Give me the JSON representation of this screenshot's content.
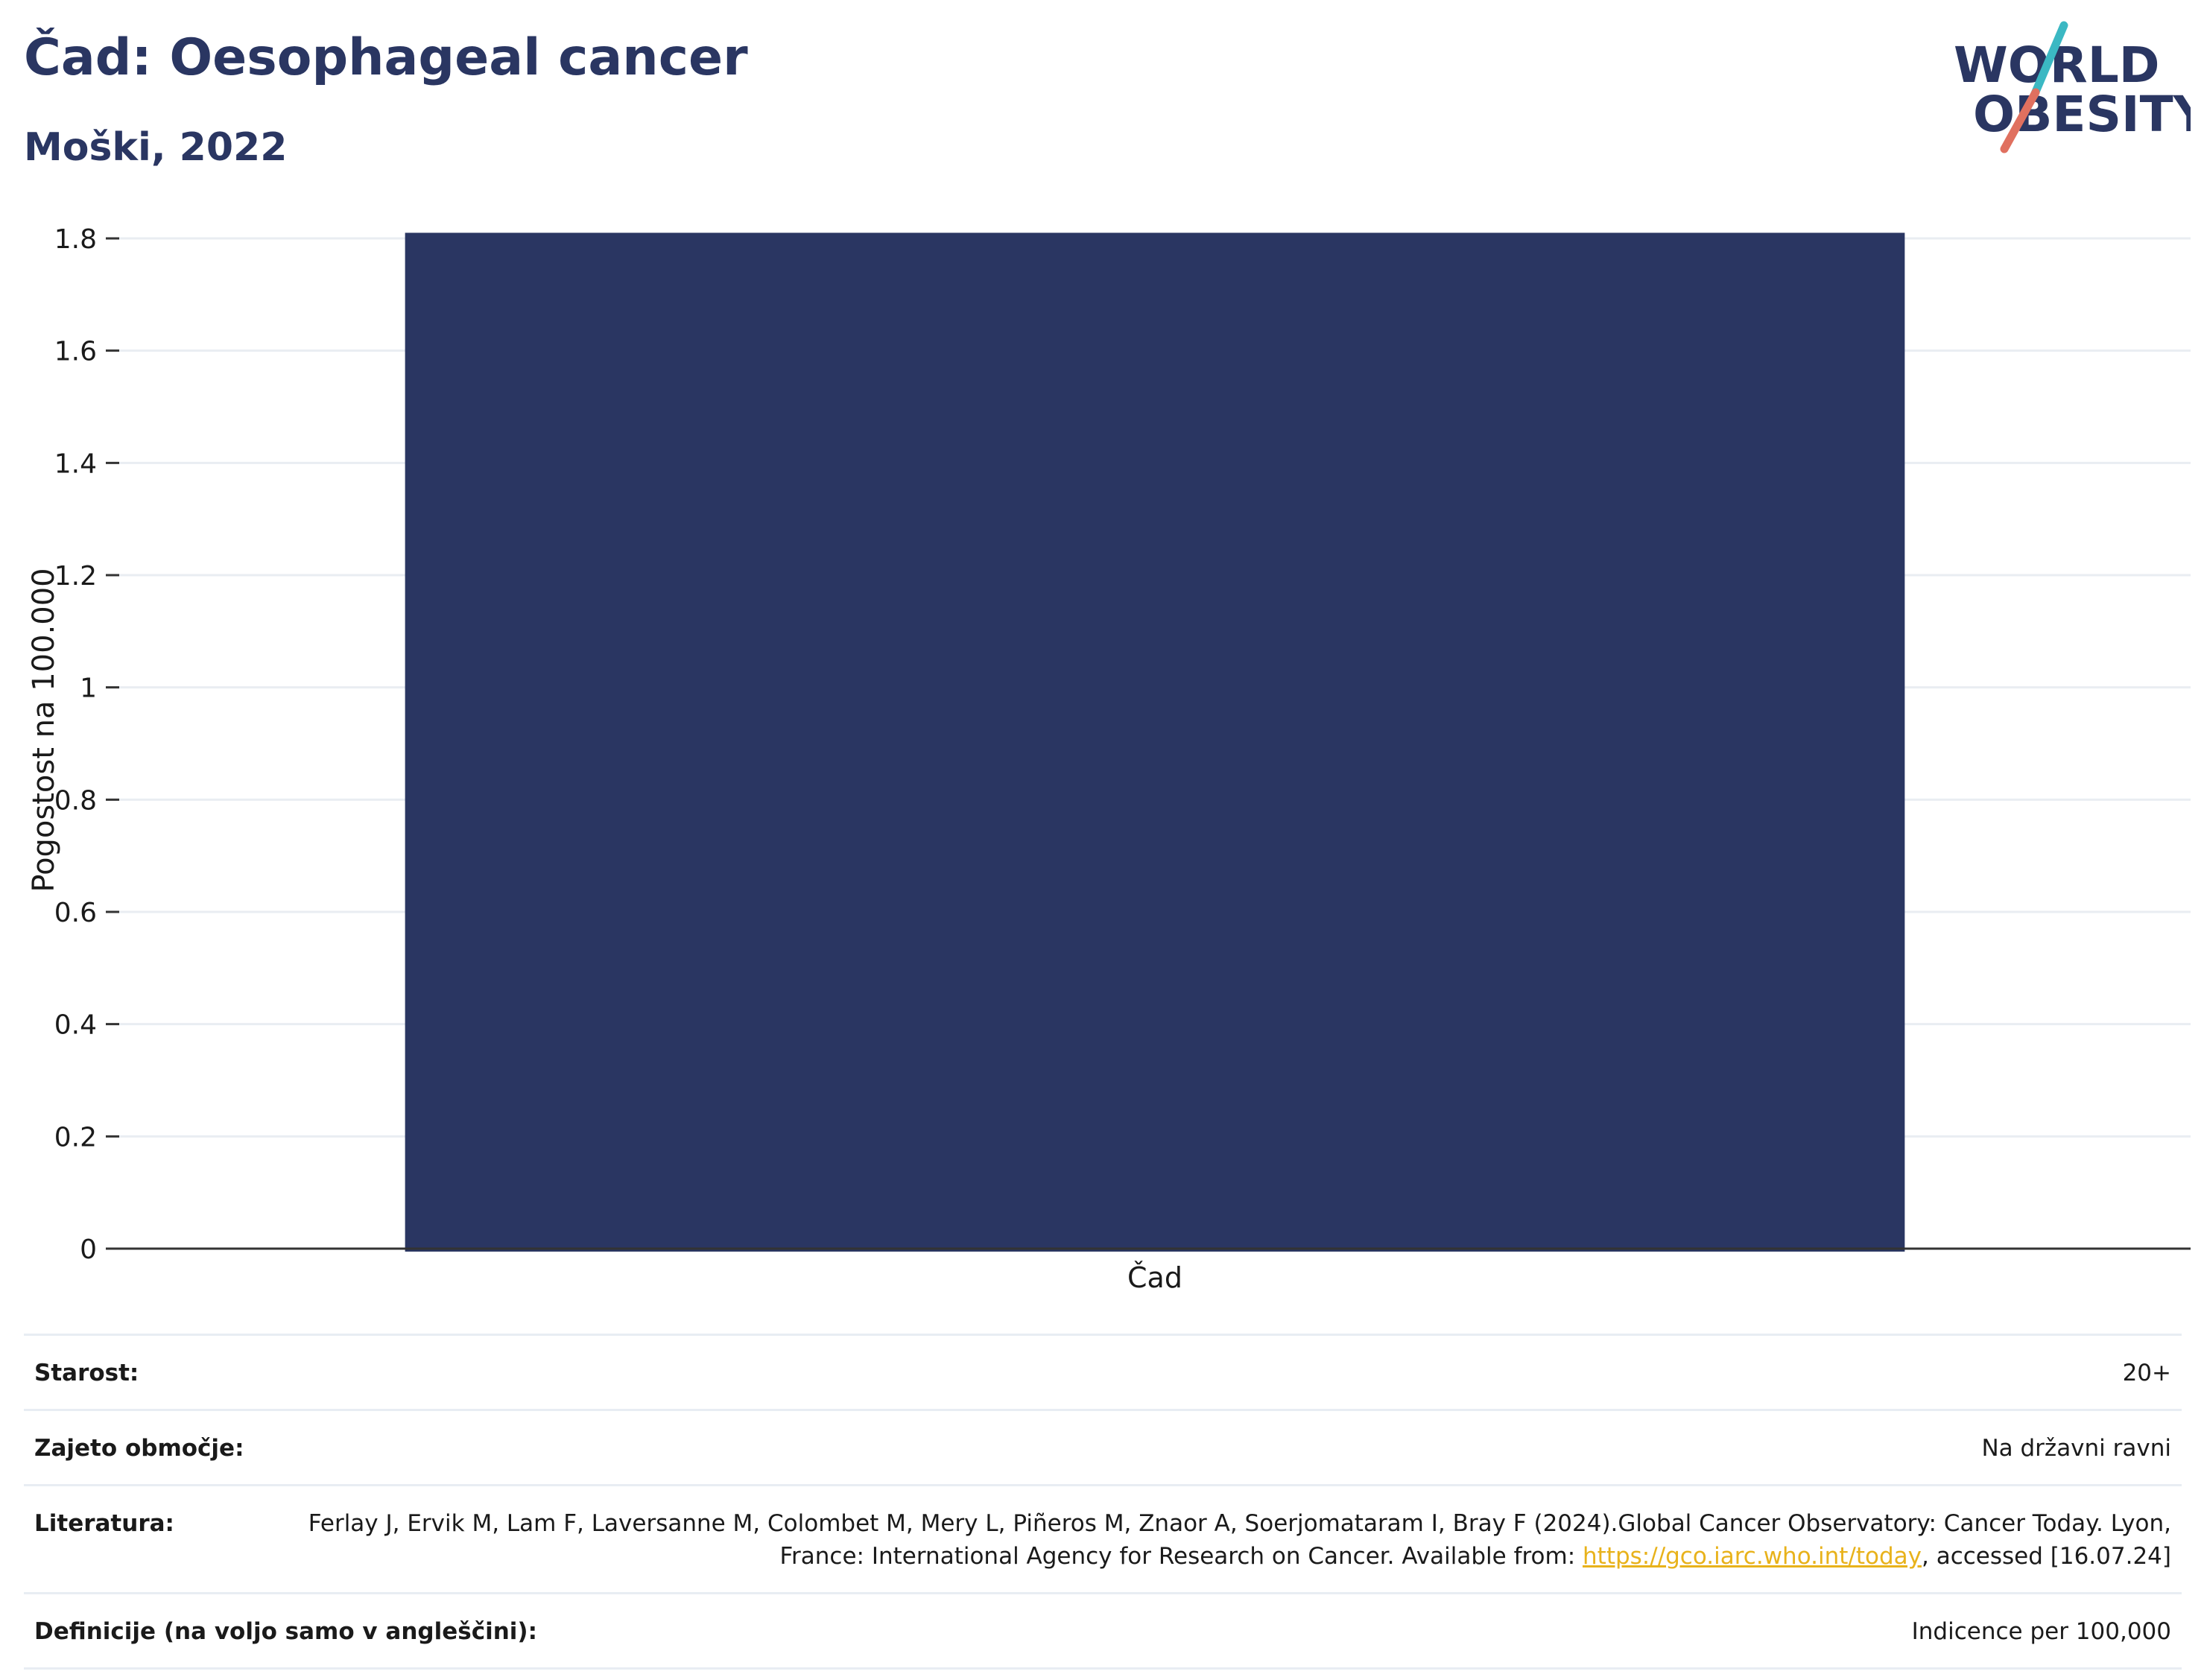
{
  "header": {
    "title": "Čad: Oesophageal cancer",
    "subtitle": "Moški, 2022"
  },
  "logo": {
    "line1": "WORLD",
    "line2": "OBESITY",
    "accent_teal": "#3bb8c3",
    "accent_coral": "#e0705f",
    "text_color": "#2a3662"
  },
  "chart_data": {
    "type": "bar",
    "categories": [
      "Čad"
    ],
    "values": [
      1.81
    ],
    "ylabel": "Pogostost na 100.000",
    "xlabel": "",
    "ylim": [
      0,
      1.8
    ],
    "yticks": [
      0,
      0.2,
      0.4,
      0.6,
      0.8,
      1,
      1.2,
      1.4,
      1.6,
      1.8
    ],
    "ytick_labels": [
      "0",
      "0.2",
      "0.4",
      "0.6",
      "0.8",
      "1",
      "1.2",
      "1.4",
      "1.6",
      "1.8"
    ],
    "grid": true,
    "bar_color": "#2a3662"
  },
  "meta": {
    "age_label": "Starost:",
    "age_value": "20+",
    "coverage_label": "Zajeto območje:",
    "coverage_value": "Na državni ravni",
    "reference_label": "Literatura:",
    "reference_text": "Ferlay J, Ervik M, Lam F, Laversanne M, Colombet M, Mery L, Piñeros M, Znaor A, Soerjomataram I, Bray F (2024).Global Cancer Observatory: Cancer Today. Lyon, France: International Agency for Research on Cancer. Available from: ",
    "reference_link": "https://gco.iarc.who.int/today",
    "reference_suffix": ", accessed [16.07.24]",
    "definitions_label": "Definicije (na voljo samo v angleščini):",
    "definitions_value": "Indicence per 100,000"
  }
}
